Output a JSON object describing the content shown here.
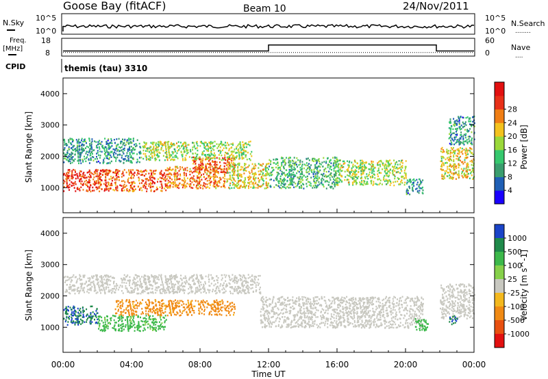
{
  "header": {
    "station": "Goose Bay (fitACF)",
    "beam": "Beam 10",
    "date": "24/Nov/2011"
  },
  "noise_panel": {
    "left_label": "N.Sky",
    "right_label": "N.Search",
    "ticks_left": [
      "10^5",
      "10^0"
    ],
    "ticks_right": [
      "10^5",
      "10^0"
    ],
    "legend_marker": "........"
  },
  "freq_panel": {
    "left_label_1": "Freq.",
    "left_label_2": "[MHz]",
    "right_label": "Nave",
    "ticks_left": [
      "18",
      "8"
    ],
    "ticks_right": [
      "60",
      "0"
    ],
    "legend_marker": "....",
    "freq_steps": [
      {
        "start_h": 0.0,
        "end_h": 12.0,
        "value": 10.5
      },
      {
        "start_h": 12.0,
        "end_h": 21.8,
        "value": 14.5
      },
      {
        "start_h": 21.8,
        "end_h": 24.0,
        "value": 10.5
      }
    ],
    "nave_level": 9
  },
  "cpid": {
    "label": "CPID",
    "program": "themis (tau) 3310"
  },
  "x_axis": {
    "title": "Time UT",
    "ticks": [
      "00:00",
      "04:00",
      "08:00",
      "12:00",
      "16:00",
      "20:00",
      "00:00"
    ],
    "range_hours": [
      0,
      24
    ]
  },
  "chart_data": [
    {
      "type": "heatmap",
      "name": "power",
      "ylabel": "Slant Range [km]",
      "y_ticks": [
        "1000",
        "2000",
        "3000",
        "4000"
      ],
      "ylim": [
        200,
        4500
      ],
      "colorbar_label": "Power [dB]",
      "colorbar_ticks": [
        "4",
        "8",
        "12",
        "16",
        "20",
        "24",
        "28"
      ],
      "colorbar_colors": [
        "#1a00ff",
        "#1f5fb5",
        "#3a9d6e",
        "#36c86e",
        "#9ad83a",
        "#f3c21e",
        "#f07e14",
        "#e83018",
        "#e21010"
      ],
      "regions": [
        {
          "t0": 0.0,
          "t1": 2.0,
          "r0": 900,
          "r1": 1600,
          "value": 26
        },
        {
          "t0": 2.0,
          "t1": 6.0,
          "r0": 900,
          "r1": 1600,
          "value": 24
        },
        {
          "t0": 6.0,
          "t1": 9.5,
          "r0": 1000,
          "r1": 1700,
          "value": 22
        },
        {
          "t0": 7.5,
          "t1": 10.0,
          "r0": 1500,
          "r1": 2000,
          "value": 24
        },
        {
          "t0": 0.0,
          "t1": 4.5,
          "r0": 1800,
          "r1": 2600,
          "value": 10
        },
        {
          "t0": 4.5,
          "t1": 11.0,
          "r0": 1900,
          "r1": 2500,
          "value": 16
        },
        {
          "t0": 9.5,
          "t1": 12.0,
          "r0": 1000,
          "r1": 1800,
          "value": 18
        },
        {
          "t0": 12.0,
          "t1": 16.0,
          "r0": 1000,
          "r1": 2000,
          "value": 12
        },
        {
          "t0": 16.0,
          "t1": 20.0,
          "r0": 1100,
          "r1": 1900,
          "value": 16
        },
        {
          "t0": 20.0,
          "t1": 21.0,
          "r0": 800,
          "r1": 1300,
          "value": 10
        },
        {
          "t0": 22.0,
          "t1": 24.0,
          "r0": 1300,
          "r1": 2300,
          "value": 18
        },
        {
          "t0": 22.5,
          "t1": 24.0,
          "r0": 2400,
          "r1": 3300,
          "value": 10
        }
      ]
    },
    {
      "type": "heatmap",
      "name": "velocity",
      "ylabel": "Slant Range [km]",
      "y_ticks": [
        "1000",
        "2000",
        "3000",
        "4000"
      ],
      "ylim": [
        200,
        4500
      ],
      "colorbar_label": "Velocity [m s^-1]",
      "colorbar_ticks": [
        "1000",
        "500",
        "100",
        "25",
        "-25",
        "-100",
        "-500",
        "-1000"
      ],
      "colorbar_colors": [
        "#1a44c8",
        "#1f8a4a",
        "#3cb84a",
        "#86d04a",
        "#c8c8c0",
        "#f3b81e",
        "#f08a14",
        "#e85010",
        "#e21010"
      ],
      "regions": [
        {
          "t0": 0.0,
          "t1": 2.0,
          "r0": 1100,
          "r1": 1700,
          "value": 700
        },
        {
          "t0": 2.0,
          "t1": 6.0,
          "r0": 900,
          "r1": 1400,
          "value": 100
        },
        {
          "t0": 3.0,
          "t1": 10.0,
          "r0": 1400,
          "r1": 1900,
          "value": -100
        },
        {
          "t0": 0.0,
          "t1": 11.5,
          "r0": 2100,
          "r1": 2700,
          "value": 0
        },
        {
          "t0": 11.5,
          "t1": 21.0,
          "r0": 1000,
          "r1": 2000,
          "value": 0
        },
        {
          "t0": 20.5,
          "t1": 21.3,
          "r0": 900,
          "r1": 1300,
          "value": 200
        },
        {
          "t0": 22.0,
          "t1": 24.0,
          "r0": 1300,
          "r1": 2400,
          "value": 0
        },
        {
          "t0": 22.5,
          "t1": 23.0,
          "r0": 1100,
          "r1": 1400,
          "value": 700
        }
      ]
    }
  ]
}
